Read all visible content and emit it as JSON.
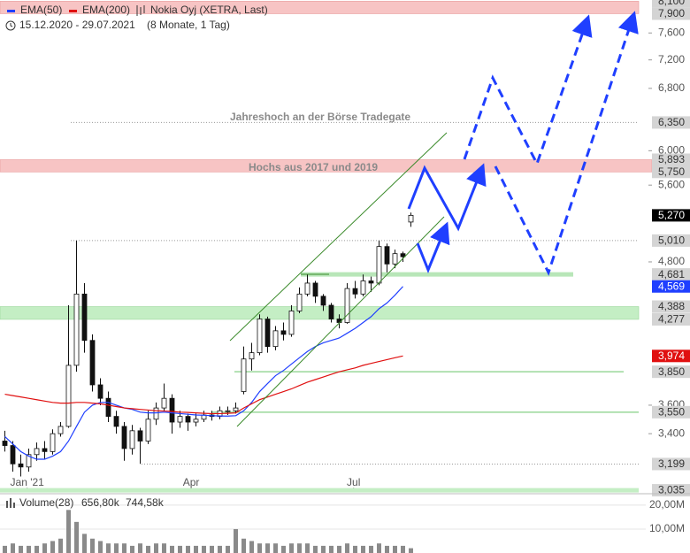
{
  "chart_data": [
    {
      "type": "candlestick",
      "title": "Nokia Oyj (XETRA, Last)",
      "subtitle": "15.12.2020 - 29.07.2021",
      "period": "(8 Monate, 1 Tag)",
      "log": true,
      "ylim": [
        3030,
        8120
      ],
      "yticks": [
        {
          "value": 7600,
          "label": "7,600"
        },
        {
          "value": 7200,
          "label": "7,200"
        },
        {
          "value": 6800,
          "label": "6,800"
        },
        {
          "value": 6000,
          "label": "6,000"
        },
        {
          "value": 5600,
          "label": "5,600"
        },
        {
          "value": 4800,
          "label": "4,800"
        },
        {
          "value": 3600,
          "label": "3,600"
        },
        {
          "value": 3400,
          "label": "3,400"
        }
      ],
      "xticks": [
        {
          "value": 2.8,
          "label": "Jan '21"
        },
        {
          "value": 23.4,
          "label": "Apr"
        },
        {
          "value": 43.8,
          "label": "Jul"
        }
      ],
      "up_color": "#ffffff",
      "down_color": "#111111",
      "candles": [
        [
          3350,
          3420,
          3280,
          3320
        ],
        [
          3320,
          3350,
          3150,
          3200
        ],
        [
          3200,
          3260,
          3120,
          3180
        ],
        [
          3180,
          3300,
          3150,
          3260
        ],
        [
          3260,
          3340,
          3220,
          3300
        ],
        [
          3300,
          3350,
          3230,
          3280
        ],
        [
          3280,
          3430,
          3260,
          3400
        ],
        [
          3400,
          3480,
          3380,
          3450
        ],
        [
          3450,
          4400,
          3440,
          3900
        ],
        [
          3900,
          5010,
          3850,
          4500
        ],
        [
          4500,
          4600,
          4000,
          4100
        ],
        [
          4100,
          4150,
          3700,
          3750
        ],
        [
          3750,
          3800,
          3600,
          3650
        ],
        [
          3650,
          3700,
          3480,
          3520
        ],
        [
          3520,
          3560,
          3400,
          3450
        ],
        [
          3450,
          3480,
          3220,
          3300
        ],
        [
          3300,
          3460,
          3260,
          3420
        ],
        [
          3420,
          3440,
          3200,
          3350
        ],
        [
          3350,
          3560,
          3330,
          3500
        ],
        [
          3500,
          3620,
          3460,
          3580
        ],
        [
          3580,
          3760,
          3560,
          3650
        ],
        [
          3650,
          3680,
          3400,
          3480
        ],
        [
          3480,
          3560,
          3440,
          3520
        ],
        [
          3520,
          3540,
          3420,
          3480
        ],
        [
          3480,
          3540,
          3450,
          3500
        ],
        [
          3500,
          3560,
          3480,
          3530
        ],
        [
          3530,
          3560,
          3490,
          3520
        ],
        [
          3520,
          3590,
          3500,
          3560
        ],
        [
          3560,
          3590,
          3530,
          3560
        ],
        [
          3560,
          3620,
          3540,
          3580
        ],
        [
          3700,
          4050,
          3680,
          3950
        ],
        [
          3950,
          4080,
          3860,
          4000
        ],
        [
          4000,
          4320,
          3980,
          4280
        ],
        [
          4280,
          4300,
          4000,
          4050
        ],
        [
          4050,
          4220,
          4020,
          4180
        ],
        [
          4180,
          4250,
          4100,
          4150
        ],
        [
          4150,
          4400,
          4130,
          4350
        ],
        [
          4350,
          4560,
          4330,
          4500
        ],
        [
          4500,
          4681,
          4480,
          4600
        ],
        [
          4600,
          4620,
          4420,
          4480
        ],
        [
          4480,
          4500,
          4350,
          4400
        ],
        [
          4400,
          4420,
          4250,
          4280
        ],
        [
          4280,
          4320,
          4200,
          4250
        ],
        [
          4250,
          4600,
          4240,
          4550
        ],
        [
          4550,
          4620,
          4460,
          4500
        ],
        [
          4500,
          4680,
          4480,
          4620
        ],
        [
          4620,
          4660,
          4520,
          4600
        ],
        [
          4600,
          5010,
          4580,
          4950
        ],
        [
          4950,
          4980,
          4700,
          4780
        ],
        [
          4780,
          4920,
          4740,
          4880
        ],
        [
          4880,
          4900,
          4800,
          4850
        ],
        [
          5200,
          5300,
          5150,
          5270
        ]
      ],
      "series": [
        {
          "name": "EMA(50)",
          "color": "#1f3fff",
          "values": [
            3380,
            3330,
            3280,
            3250,
            3230,
            3230,
            3250,
            3280,
            3350,
            3450,
            3550,
            3600,
            3620,
            3620,
            3600,
            3580,
            3570,
            3550,
            3545,
            3545,
            3550,
            3545,
            3540,
            3535,
            3530,
            3528,
            3525,
            3523,
            3522,
            3525,
            3560,
            3620,
            3700,
            3760,
            3820,
            3860,
            3910,
            3960,
            4010,
            4050,
            4080,
            4100,
            4120,
            4160,
            4200,
            4250,
            4300,
            4370,
            4420,
            4490,
            4569
          ]
        },
        {
          "name": "EMA(200)",
          "color": "#e01010",
          "values": [
            3680,
            3670,
            3660,
            3650,
            3640,
            3630,
            3620,
            3615,
            3615,
            3620,
            3620,
            3615,
            3610,
            3600,
            3590,
            3580,
            3575,
            3570,
            3565,
            3560,
            3558,
            3555,
            3550,
            3548,
            3545,
            3542,
            3540,
            3540,
            3542,
            3545,
            3580,
            3610,
            3640,
            3660,
            3680,
            3700,
            3720,
            3745,
            3770,
            3790,
            3810,
            3830,
            3850,
            3865,
            3880,
            3900,
            3915,
            3930,
            3945,
            3960,
            3974
          ]
        }
      ],
      "levels": [
        {
          "value": 8100,
          "label": "8,100",
          "style": "band",
          "color": "#f7c4c4"
        },
        {
          "value": 7900,
          "label": "7,900",
          "style": "band",
          "color": "#f7c4c4"
        },
        {
          "value": 6350,
          "label": "6,350",
          "style": "dotted",
          "color": "#9a9a9a"
        },
        {
          "value": 5893,
          "label": "5,893",
          "style": "band",
          "color": "#f7c4c4"
        },
        {
          "value": 5750,
          "label": "5,750",
          "style": "band",
          "color": "#f7c4c4"
        },
        {
          "value": 5270,
          "label": "5,270",
          "style": "price",
          "color": "#000000"
        },
        {
          "value": 5010,
          "label": "5,010",
          "style": "dotted",
          "color": "#9a9a9a"
        },
        {
          "value": 4681,
          "label": "4,681",
          "style": "line",
          "color": "#b8e6b8"
        },
        {
          "value": 4569,
          "label": "4,569",
          "style": "price",
          "color": "#1f3fff"
        },
        {
          "value": 4388,
          "label": "4,388",
          "style": "band",
          "color": "#c4eec4"
        },
        {
          "value": 4277,
          "label": "4,277",
          "style": "band",
          "color": "#c4eec4"
        },
        {
          "value": 3974,
          "label": "3,974",
          "style": "price",
          "color": "#e01010"
        },
        {
          "value": 3850,
          "label": "3,850",
          "style": "line",
          "color": "#9ad89a"
        },
        {
          "value": 3550,
          "label": "3,550",
          "style": "line",
          "color": "#9ad89a"
        },
        {
          "value": 3199,
          "label": "3,199",
          "style": "dotted",
          "color": "#9a9a9a"
        },
        {
          "value": 3035,
          "label": "3,035",
          "style": "line",
          "color": "#c4eec4"
        }
      ],
      "annotations": [
        "Jahreshoch an der Börse Tradegate",
        "Hochs aus 2017 und 2019"
      ]
    },
    {
      "type": "bar",
      "name": "Volume(28)",
      "legend_values": [
        {
          "label": "656,80k",
          "color": "#333333"
        },
        {
          "label": "744,58k",
          "color": "#e6b800"
        }
      ],
      "color": "#8a8a8a",
      "ylim": [
        0,
        23.3
      ],
      "yticks": [
        {
          "value": 20,
          "label": "20,00M"
        },
        {
          "value": 10,
          "label": "10,00M"
        }
      ],
      "values": [
        3,
        4,
        3,
        3,
        3,
        4,
        5,
        6,
        18,
        13,
        8,
        6,
        5,
        4,
        4,
        4,
        3,
        4,
        3,
        4,
        4,
        3,
        3,
        3,
        3,
        3,
        3,
        3,
        3,
        10,
        6,
        5,
        4,
        4,
        4,
        3,
        4,
        4,
        4,
        3,
        3,
        3,
        3,
        4,
        3,
        3,
        3,
        4,
        3,
        3,
        3,
        2
      ]
    }
  ]
}
